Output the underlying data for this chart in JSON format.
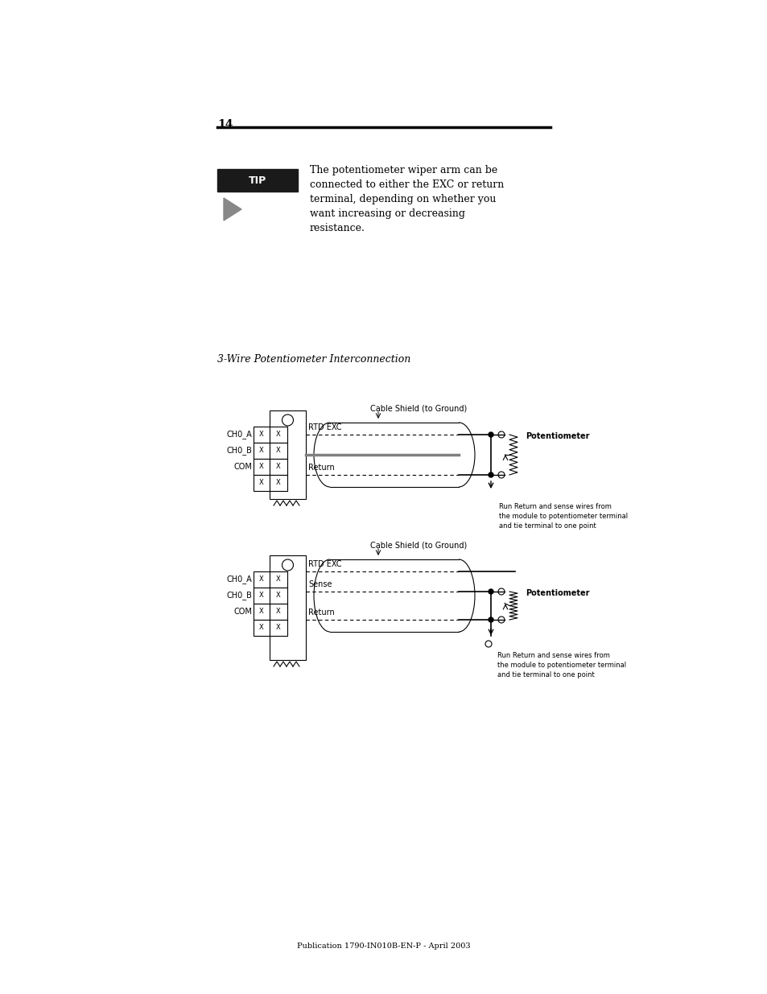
{
  "page_number": "14",
  "tip_text": "The potentiometer wiper arm can be\nconnected to either the EXC or return\nterminal, depending on whether you\nwant increasing or decreasing\nresistance.",
  "section_title": "3-Wire Potentiometer Interconnection",
  "footer": "Publication 1790-IN010B-EN-P - April 2003",
  "diagram1": {
    "labels_left": [
      "CH0_A",
      "CH0_B",
      "COM"
    ],
    "wire_labels": [
      "RTD EXC",
      "Return"
    ],
    "cable_label": "Cable Shield (to Ground)",
    "right_label": "Potentiometer",
    "note": "Run Return and sense wires from\nthe module to potentiometer terminal\nand tie terminal to one point"
  },
  "diagram2": {
    "labels_left": [
      "CH0_A",
      "CH0_B",
      "COM"
    ],
    "wire_labels": [
      "RTD EXC",
      "Sense",
      "Return"
    ],
    "cable_label": "Cable Shield (to Ground)",
    "right_label": "Potentiometer",
    "note": "Run Return and sense wires from\nthe module to potentiometer terminal\nand tie terminal to one point"
  },
  "bg_color": "#ffffff",
  "line_color": "#000000",
  "gray_color": "#808080",
  "tip_bg": "#1a1a1a",
  "tip_fg": "#ffffff"
}
